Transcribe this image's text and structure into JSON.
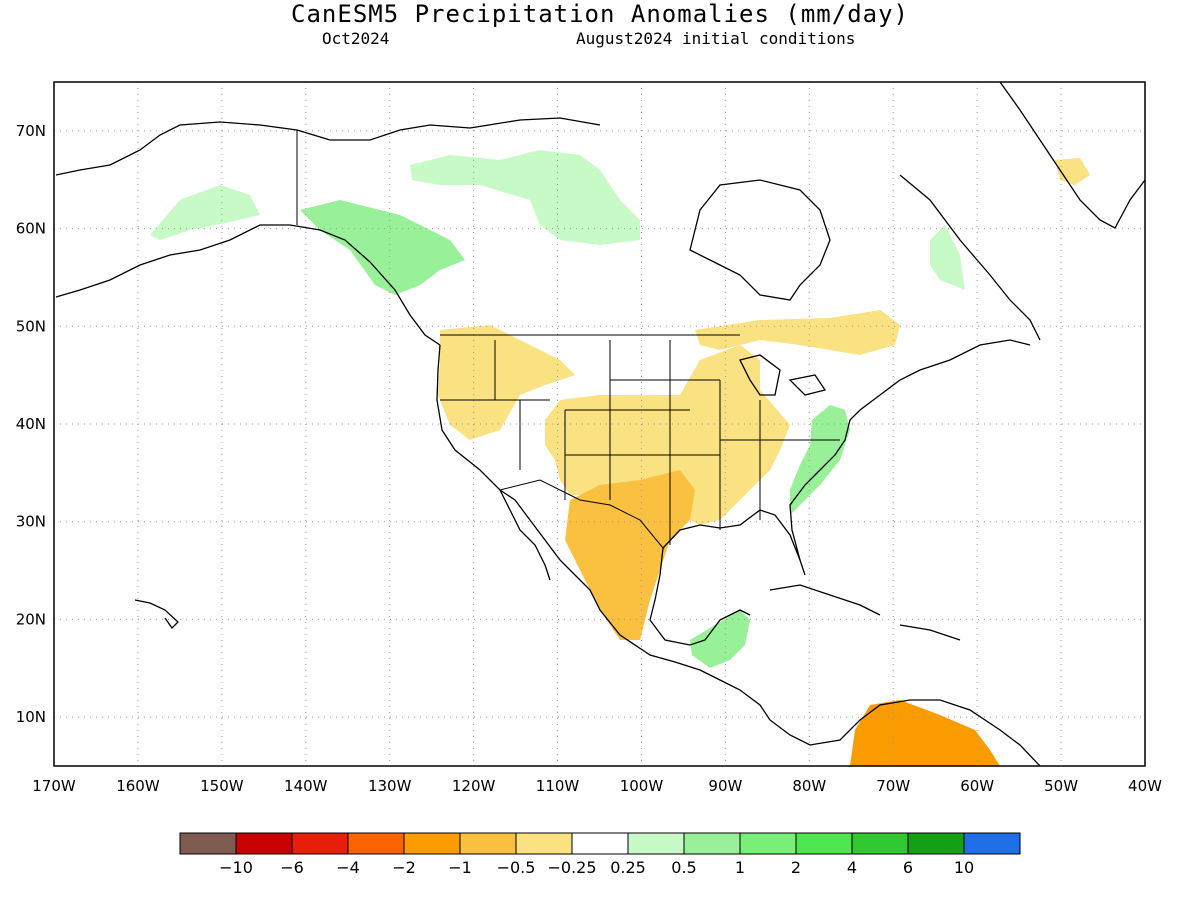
{
  "title": "CanESM5 Precipitation Anomalies (mm/day)",
  "subtitle_left": "Oct2024",
  "subtitle_right": "August2024 initial conditions",
  "map": {
    "lon_range": [
      -170,
      -40
    ],
    "lat_range": [
      5,
      75
    ],
    "lon_ticks": [
      "170W",
      "160W",
      "150W",
      "140W",
      "130W",
      "120W",
      "110W",
      "100W",
      "90W",
      "80W",
      "70W",
      "60W",
      "50W",
      "40W"
    ],
    "lat_ticks": [
      "10N",
      "20N",
      "30N",
      "40N",
      "50N",
      "60N",
      "70N"
    ],
    "gridlines": "dotted",
    "anomaly_regions": [
      {
        "name": "Alaska",
        "color": "#c8fac8"
      },
      {
        "name": "Southeast Alaska / British Columbia coast",
        "color": "#98f098"
      },
      {
        "name": "Canadian Arctic Archipelago",
        "color": "#c8fac8"
      },
      {
        "name": "Labrador",
        "color": "#c8fac8"
      },
      {
        "name": "Greenland southwest",
        "color": "#fae182"
      },
      {
        "name": "US Pacific Northwest and Rockies",
        "color": "#fae182"
      },
      {
        "name": "Central and Southern US",
        "color": "#fae182"
      },
      {
        "name": "Texas / Northern Mexico",
        "color": "#fac040"
      },
      {
        "name": "Southern Canada",
        "color": "#fae182"
      },
      {
        "name": "US Mid-Atlantic / Southeast coast",
        "color": "#98f098"
      },
      {
        "name": "Central America / Yucatan",
        "color": "#98f098"
      },
      {
        "name": "Venezuela",
        "color": "#fa9b00"
      }
    ]
  },
  "colorbar": {
    "colors": [
      "#7f5a4f",
      "#c80000",
      "#e61e0a",
      "#fa6400",
      "#fa9b00",
      "#fac040",
      "#fae182",
      "#ffffff",
      "#c8fac8",
      "#98f098",
      "#78f078",
      "#50e650",
      "#32c832",
      "#14a014",
      "#1e6ee6"
    ],
    "labels": [
      "−10",
      "−6",
      "−4",
      "−2",
      "−1",
      "−0.5",
      "−0.25",
      "0.25",
      "0.5",
      "1",
      "2",
      "4",
      "6",
      "10"
    ]
  }
}
